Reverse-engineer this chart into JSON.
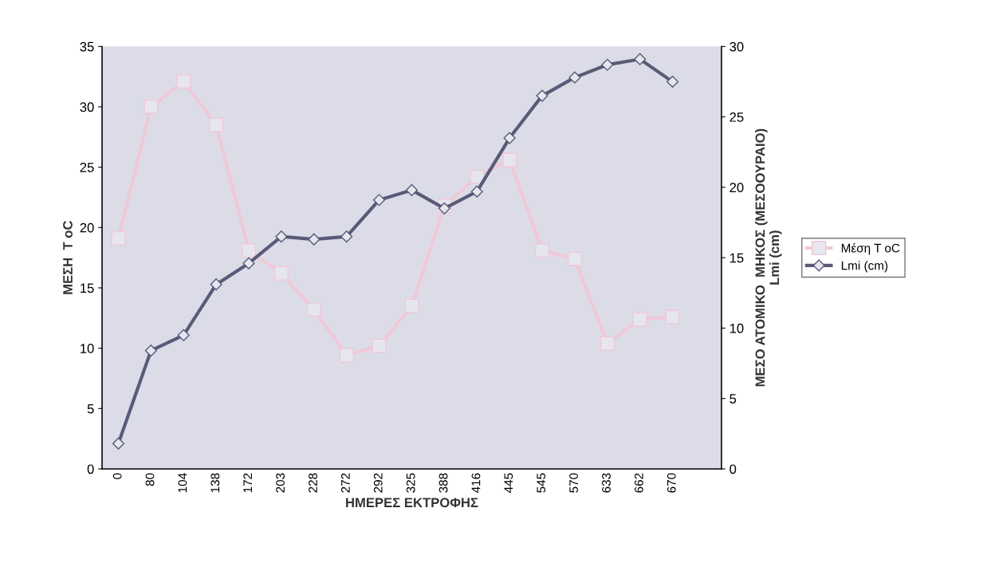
{
  "chart_data": {
    "type": "line",
    "xlabel": "ΗΜΕΡΕΣ ΕΚΤΡΟΦΗΣ",
    "ylabel": "ΜΕΣΗ  T oC",
    "y2label": "ΜΕΣΟ ΑΤΟΜΙΚΟ  ΜΗΚΟΣ (ΜΕΣΟΟΥΡΑΙΟ)\nLmi (cm)",
    "categories": [
      "0",
      "80",
      "104",
      "138",
      "172",
      "203",
      "228",
      "272",
      "292",
      "325",
      "388",
      "416",
      "445",
      "545",
      "570",
      "633",
      "662",
      "670",
      null
    ],
    "series": [
      {
        "name": "Μέση T oC",
        "color": "#f0c8d8",
        "marker": "square",
        "values": [
          19.1,
          30.0,
          32.1,
          28.5,
          18.1,
          16.2,
          13.2,
          9.4,
          10.2,
          13.5,
          21.8,
          24.2,
          25.6,
          18.1,
          17.4,
          10.4,
          12.4,
          12.6,
          null
        ]
      },
      {
        "name": "Lmi (cm)",
        "color": "#5a5a78",
        "marker": "diamond",
        "axis": "y2",
        "values": [
          1.8,
          8.4,
          9.5,
          13.1,
          14.6,
          16.5,
          16.3,
          16.5,
          19.1,
          19.8,
          18.5,
          19.7,
          23.5,
          26.5,
          27.8,
          28.7,
          29.1,
          27.5,
          null
        ]
      }
    ],
    "ylim": [
      0,
      35
    ],
    "yticks": [
      0,
      5,
      10,
      15,
      20,
      25,
      30,
      35
    ],
    "y2lim": [
      0,
      30
    ],
    "y2ticks": [
      0,
      5,
      10,
      15,
      20,
      25,
      30
    ],
    "grid": false,
    "legend": "right",
    "line_style": "solid"
  }
}
